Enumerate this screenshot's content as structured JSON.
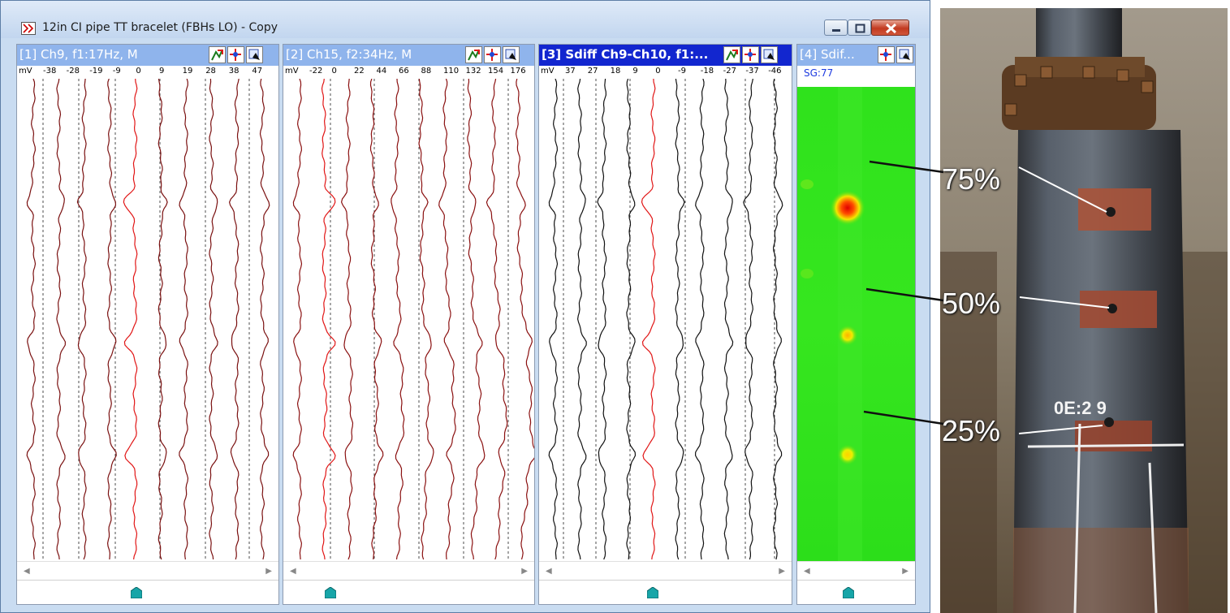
{
  "window": {
    "title": "12in CI pipe TT bracelet (FBHs LO) - Copy"
  },
  "panes": [
    {
      "title": "[1] Ch9, f1:17Hz, M",
      "scale_unit": "mV",
      "scale": [
        "-38",
        "-28",
        "-19",
        "-9",
        "0",
        "9",
        "19",
        "28",
        "38",
        "47"
      ],
      "trace_color": "#7a1010",
      "highlight_color": "#e11515"
    },
    {
      "title": "[2] Ch15, f2:34Hz, M",
      "scale_unit": "mV",
      "scale": [
        "-22",
        "0",
        "22",
        "44",
        "66",
        "88",
        "110",
        "132",
        "154",
        "176"
      ],
      "trace_color": "#8a1010",
      "highlight_color": "#e11515"
    },
    {
      "title": "[3] Sdiff Ch9-Ch10, f1:...",
      "scale_unit": "mV",
      "scale": [
        "37",
        "27",
        "18",
        "9",
        "0",
        "-9",
        "-18",
        "-27",
        "-37",
        "-46"
      ],
      "trace_color": "#111111",
      "highlight_color": "#e11515"
    },
    {
      "title": "[4] Sdif...",
      "sg_label": "SG:77"
    }
  ],
  "photo": {
    "labels": [
      "75%",
      "50%",
      "25%"
    ],
    "chalk": "0E:2    9"
  },
  "icons": [
    "window-app-icon",
    "minimize-icon",
    "maximize-icon",
    "close-icon",
    "chart-settings-icon",
    "cursor-icon",
    "export-icon",
    "scroll-left-icon",
    "scroll-right-icon",
    "position-marker-icon"
  ]
}
